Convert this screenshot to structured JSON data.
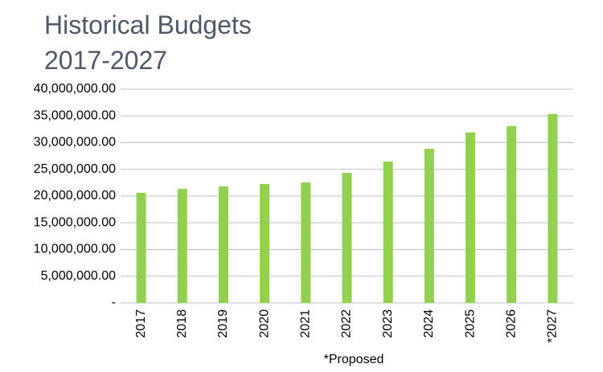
{
  "chart_data": {
    "type": "bar",
    "title": [
      "Historical Budgets",
      "2017-2027"
    ],
    "x_label": "*Proposed",
    "categories": [
      "2017",
      "2018",
      "2019",
      "2020",
      "2021",
      "2022",
      "2023",
      "2024",
      "2025",
      "2026",
      "*2027"
    ],
    "values": [
      20600000,
      21350000,
      21800000,
      22250000,
      22550000,
      24350000,
      26450000,
      28850000,
      31900000,
      33100000,
      35350000
    ],
    "color": "#92d050",
    "ylim": [
      0,
      40000000
    ],
    "yticks": [
      {
        "value": 0,
        "label": "-"
      },
      {
        "value": 5000000,
        "label": "5,000,000.00"
      },
      {
        "value": 10000000,
        "label": "10,000,000.00"
      },
      {
        "value": 15000000,
        "label": "15,000,000.00"
      },
      {
        "value": 20000000,
        "label": "20,000,000.00"
      },
      {
        "value": 25000000,
        "label": "25,000,000.00"
      },
      {
        "value": 30000000,
        "label": "30,000,000.00"
      },
      {
        "value": 35000000,
        "label": "35,000,000.00"
      },
      {
        "value": 40000000,
        "label": "40,000,000.00"
      }
    ],
    "grid": true
  }
}
